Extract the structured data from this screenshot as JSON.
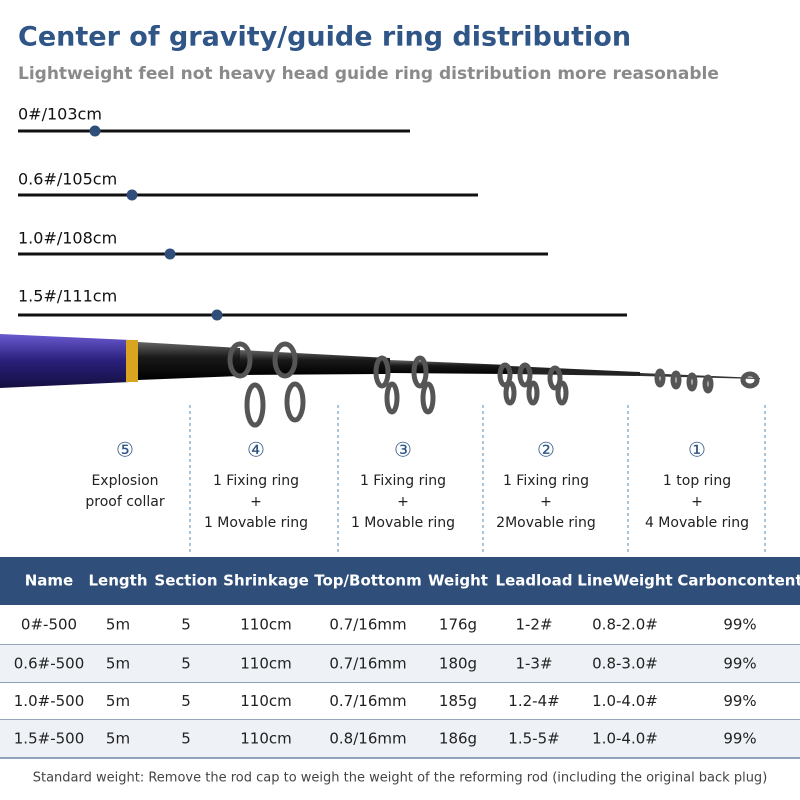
{
  "header": {
    "title": "Center of gravity/guide ring distribution",
    "subtitle": "Lightweight feel not heavy head guide ring distribution more reasonable"
  },
  "gravity": [
    "0#/103cm",
    "0.6#/105cm",
    "1.0#/108cm",
    "1.5#/111cm"
  ],
  "callouts": [
    {
      "symbol": "⑤",
      "lines": [
        "Explosion",
        "proof collar"
      ]
    },
    {
      "symbol": "④",
      "lines": [
        "1 Fixing ring",
        "+",
        "1 Movable ring"
      ]
    },
    {
      "symbol": "③",
      "lines": [
        "1 Fixing ring",
        "+",
        "1 Movable ring"
      ]
    },
    {
      "symbol": "②",
      "lines": [
        "1 Fixing ring",
        "+",
        "2Movable ring"
      ]
    },
    {
      "symbol": "①",
      "lines": [
        "1 top ring",
        "+",
        "4 Movable ring"
      ]
    }
  ],
  "table": {
    "header": [
      "Name",
      "Length",
      "Section",
      "Shrinkage",
      "Top/Bottonm",
      "Weight",
      "Leadload",
      "LineWeight",
      "Carboncontent"
    ],
    "rows": [
      [
        "0#-500",
        "5m",
        "5",
        "110cm",
        "0.7/16mm",
        "176g",
        "1-2#",
        "0.8-2.0#",
        "99%"
      ],
      [
        "0.6#-500",
        "5m",
        "5",
        "110cm",
        "0.7/16mm",
        "180g",
        "1-3#",
        "0.8-3.0#",
        "99%"
      ],
      [
        "1.0#-500",
        "5m",
        "5",
        "110cm",
        "0.7/16mm",
        "185g",
        "1.2-4#",
        "1.0-4.0#",
        "99%"
      ],
      [
        "1.5#-500",
        "5m",
        "5",
        "110cm",
        "0.8/16mm",
        "186g",
        "1.5-5#",
        "1.0-4.0#",
        "99%"
      ]
    ]
  },
  "footer": "Standard weight: Remove the rod cap to weigh the weight of the reforming rod (including the original back plug)"
}
